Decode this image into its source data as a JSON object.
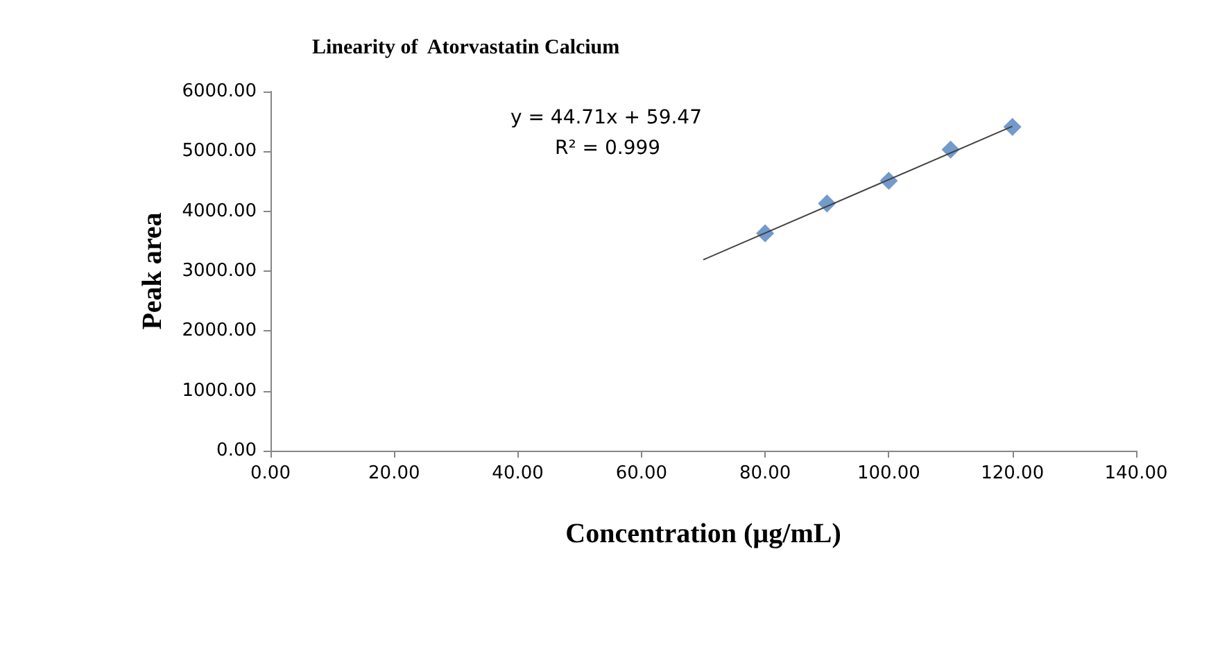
{
  "chart_data": {
    "type": "scatter",
    "title": "Linearity of  Atorvastatin Calcium",
    "xlabel": "Concentration (µg/mL)",
    "ylabel": "Peak area",
    "annotations": [
      "y = 44.71x + 59.47",
      "R² = 0.999"
    ],
    "series": [
      {
        "color": "#4f81bd",
        "marker": "diamond",
        "x": [
          80,
          90,
          100,
          110,
          120
        ],
        "values": [
          3630,
          4130,
          4510,
          5030,
          5410
        ]
      },
      {
        "type": "line",
        "color": "#404040",
        "marker": "none",
        "x": [
          70,
          120
        ],
        "values": [
          3190,
          5420
        ]
      }
    ],
    "xlim": [
      0,
      140
    ],
    "xticks": [
      {
        "value": 0,
        "label": "0.00"
      },
      {
        "value": 20,
        "label": "20.00"
      },
      {
        "value": 40,
        "label": "40.00"
      },
      {
        "value": 60,
        "label": "60.00"
      },
      {
        "value": 80,
        "label": "80.00"
      },
      {
        "value": 100,
        "label": "100.00"
      },
      {
        "value": 120,
        "label": "120.00"
      },
      {
        "value": 140,
        "label": "140.00"
      }
    ],
    "ylim": [
      0,
      6000
    ],
    "yticks": [
      {
        "value": 0,
        "label": "0.00"
      },
      {
        "value": 1000,
        "label": "1000.00"
      },
      {
        "value": 2000,
        "label": "2000.00"
      },
      {
        "value": 3000,
        "label": "3000.00"
      },
      {
        "value": 4000,
        "label": "4000.00"
      },
      {
        "value": 5000,
        "label": "5000.00"
      },
      {
        "value": 6000,
        "label": "6000.00"
      }
    ],
    "grid": false
  }
}
